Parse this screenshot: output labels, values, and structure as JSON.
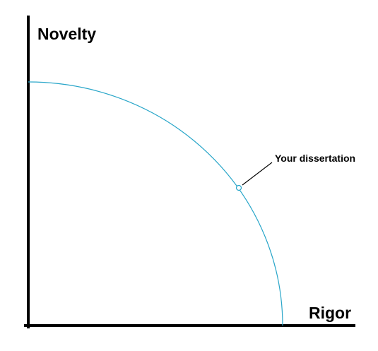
{
  "y_axis_label": "Novelty",
  "x_axis_label": "Rigor",
  "annotation": "Your dissertation",
  "colors": {
    "axes": "#000000",
    "frontier_curve": "#29a6c9",
    "text": "#000000"
  }
}
